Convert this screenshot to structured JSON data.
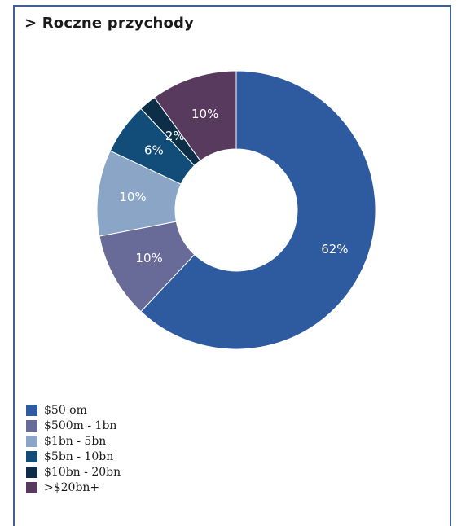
{
  "chart_data": {
    "type": "pie",
    "title": "> Roczne przychody",
    "categories": [
      "$50 om",
      "$500m - 1bn",
      "$1bn - 5bn",
      "$5bn - 10bn",
      "$10bn - 20bn",
      ">$20bn+"
    ],
    "values": [
      62,
      10,
      10,
      6,
      2,
      10
    ],
    "labels": [
      "62%",
      "10%",
      "10%",
      "6%",
      "2%",
      "10%"
    ],
    "colors": [
      "#2e5aa0",
      "#686a98",
      "#8aa5c5",
      "#114d78",
      "#0c2e47",
      "#573a5e"
    ],
    "donut": true,
    "legend": "bottom-left"
  }
}
